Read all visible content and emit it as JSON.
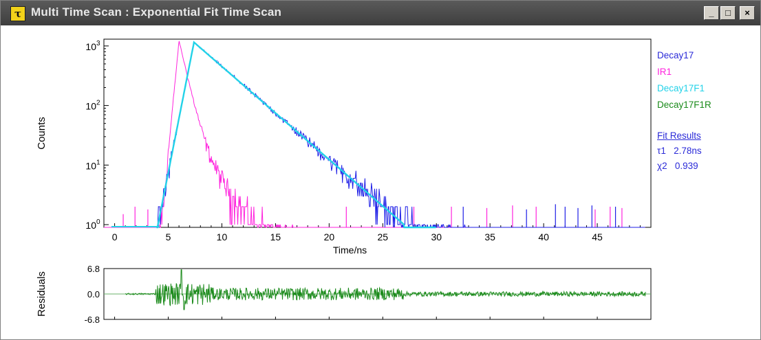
{
  "window": {
    "title": "Multi Time Scan : Exponential Fit Time Scan",
    "icon": "tau-icon",
    "buttons": {
      "minimize": "_",
      "maximize": "□",
      "close": "×"
    }
  },
  "colors": {
    "decay": "#1c1ce6",
    "irf": "#ff22dd",
    "fit": "#22d2e8",
    "residual": "#1a8a1a",
    "fit_text": "#2a2ad8"
  },
  "legend": [
    {
      "label": "Decay17",
      "color": "#2a2ad8"
    },
    {
      "label": "IR1",
      "color": "#ff22dd"
    },
    {
      "label": "Decay17F1",
      "color": "#22d2e8"
    },
    {
      "label": "Decay17F1R",
      "color": "#1a8a1a"
    }
  ],
  "fit_results": {
    "header": "Fit Results",
    "tau_label": "τ1",
    "tau_value": "2.78ns",
    "chi_label": "χ2",
    "chi_value": "0.939"
  },
  "chart_data": [
    {
      "type": "line",
      "name": "decay-plot",
      "xlabel": "Time/ns",
      "ylabel": "Counts",
      "xlim": [
        -1,
        50
      ],
      "ylim": [
        0.9,
        1300
      ],
      "yscale": "log",
      "xticks": [
        "0",
        "5",
        "10",
        "15",
        "20",
        "25",
        "30",
        "35",
        "40",
        "45"
      ],
      "xtick_values": [
        0,
        5,
        10,
        15,
        20,
        25,
        30,
        35,
        40,
        45
      ],
      "yticks": [
        {
          "base": "10",
          "exp": "0",
          "value": 1
        },
        {
          "base": "10",
          "exp": "1",
          "value": 10
        },
        {
          "base": "10",
          "exp": "2",
          "value": 100
        },
        {
          "base": "10",
          "exp": "3",
          "value": 1000
        }
      ],
      "grid": false,
      "legend_position": "right",
      "series": [
        {
          "name": "Decay17",
          "color": "#1c1ce6",
          "peak_x": 7.4,
          "peak_y": 1150,
          "lifetime_ns": 2.78
        },
        {
          "name": "IR1",
          "color": "#ff22dd",
          "peak_x": 6.0,
          "peak_y": 1200
        },
        {
          "name": "Decay17F1",
          "color": "#22d2e8",
          "peak_x": 7.4,
          "peak_y": 1150,
          "lifetime_ns": 2.78
        }
      ]
    },
    {
      "type": "line",
      "name": "residuals-plot",
      "ylabel": "Residuals",
      "ylim": [
        -6.8,
        6.8
      ],
      "yticks": [
        "6.8",
        "0.0",
        "-6.8"
      ],
      "ytick_values": [
        6.8,
        0,
        -6.8
      ],
      "xlim": [
        -1,
        50
      ],
      "series": [
        {
          "name": "Decay17F1R",
          "color": "#1a8a1a",
          "start_x": 1,
          "spike_x": 6.2,
          "spike_y": 6.5
        }
      ]
    }
  ]
}
